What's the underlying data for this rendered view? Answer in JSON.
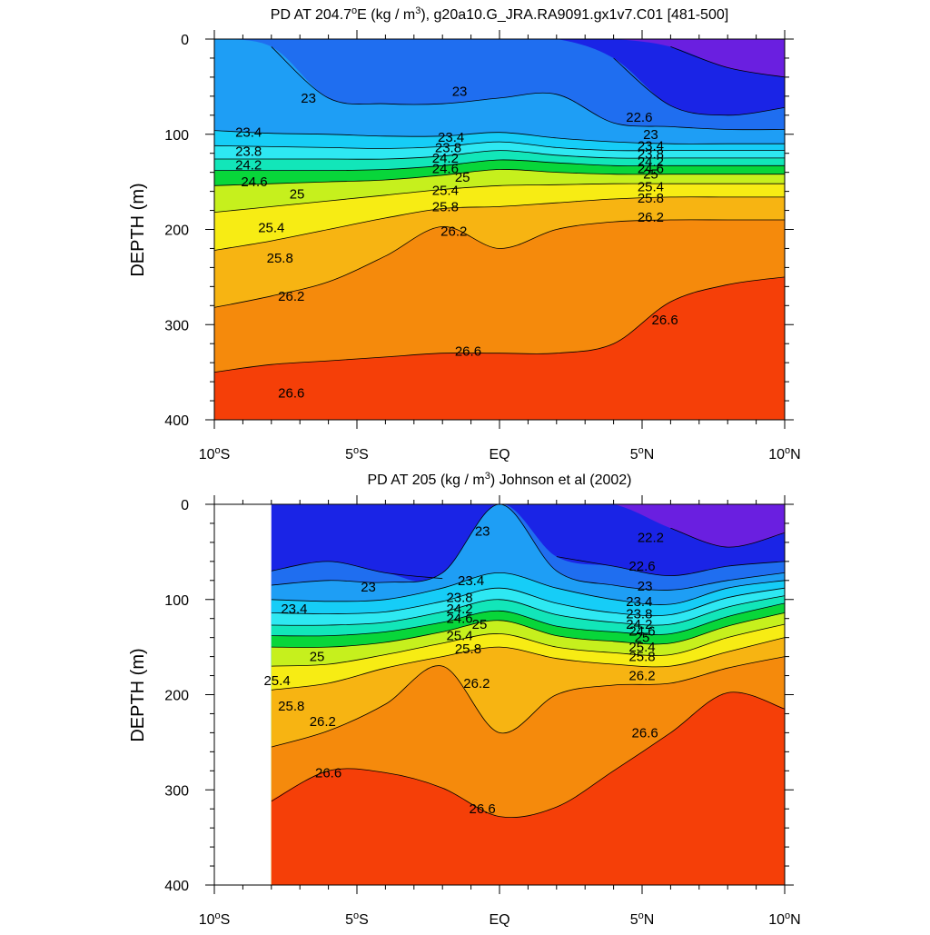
{
  "chart_data": [
    {
      "type": "contour",
      "title_main": "PD AT 204.7",
      "title_deg": "o",
      "title_rest": "E (kg / m",
      "title_sup": "3",
      "title_tail": "), g20a10.G_JRA.RA9091.gx1v7.C01 [481-500]",
      "ylabel": "DEPTH (m)",
      "xlim": [
        -10,
        10
      ],
      "ylim": [
        0,
        400
      ],
      "y_reversed": true,
      "x_ticks": [
        {
          "v": -10,
          "num": "10",
          "deg": "o",
          "hem": "S"
        },
        {
          "v": -5,
          "num": "5",
          "deg": "o",
          "hem": "S"
        },
        {
          "v": 0,
          "num": "EQ",
          "deg": "",
          "hem": ""
        },
        {
          "v": 5,
          "num": "5",
          "deg": "o",
          "hem": "N"
        },
        {
          "v": 10,
          "num": "10",
          "deg": "o",
          "hem": "N"
        }
      ],
      "y_ticks": [
        "0",
        "100",
        "200",
        "300",
        "400"
      ],
      "data_xrange": [
        -10,
        10
      ],
      "x": [
        -10,
        -8,
        -6,
        -4,
        -2,
        0,
        2,
        4,
        6,
        8,
        10
      ],
      "levels": [
        22.2,
        22.6,
        23,
        23.4,
        23.8,
        24.2,
        24.6,
        25,
        25.4,
        25.8,
        26.2,
        26.6
      ],
      "isolines": [
        {
          "v": 22.2,
          "d": [
            null,
            null,
            null,
            null,
            null,
            null,
            null,
            null,
            8,
            30,
            40
          ]
        },
        {
          "v": 22.6,
          "d": [
            null,
            null,
            null,
            null,
            null,
            null,
            null,
            20,
            70,
            80,
            72
          ]
        },
        {
          "v": 23,
          "d": [
            null,
            8,
            62,
            68,
            68,
            62,
            58,
            88,
            92,
            95,
            95
          ]
        },
        {
          "v": 23.4,
          "d": [
            96,
            99,
            100,
            102,
            102,
            98,
            104,
            108,
            110,
            110,
            110
          ]
        },
        {
          "v": 23.8,
          "d": [
            112,
            113,
            114,
            115,
            113,
            108,
            114,
            117,
            117,
            117,
            117
          ]
        },
        {
          "v": 24.2,
          "d": [
            126,
            126,
            126,
            126,
            123,
            117,
            122,
            125,
            125,
            125,
            125
          ]
        },
        {
          "v": 24.6,
          "d": [
            138,
            138,
            138,
            137,
            133,
            127,
            130,
            133,
            133,
            133,
            133
          ]
        },
        {
          "v": 25,
          "d": [
            154,
            152,
            150,
            148,
            143,
            137,
            140,
            142,
            142,
            142,
            142
          ]
        },
        {
          "v": 25.4,
          "d": [
            182,
            176,
            170,
            164,
            158,
            154,
            153,
            152,
            152,
            152,
            152
          ]
        },
        {
          "v": 25.8,
          "d": [
            222,
            212,
            200,
            188,
            178,
            176,
            172,
            168,
            166,
            166,
            166
          ]
        },
        {
          "v": 26.2,
          "d": [
            282,
            270,
            255,
            228,
            197,
            220,
            200,
            192,
            190,
            190,
            190
          ]
        },
        {
          "v": 26.6,
          "d": [
            350,
            342,
            338,
            334,
            330,
            330,
            330,
            320,
            276,
            258,
            250
          ]
        }
      ],
      "labels": [
        {
          "x": -6.7,
          "y": 62,
          "t": "23"
        },
        {
          "x": -1.4,
          "y": 55,
          "t": "23"
        },
        {
          "x": 4.9,
          "y": 82,
          "t": "22.6"
        },
        {
          "x": -8.8,
          "y": 98,
          "t": "23.4"
        },
        {
          "x": -8.8,
          "y": 118,
          "t": "23.8"
        },
        {
          "x": -8.8,
          "y": 132,
          "t": "24.2"
        },
        {
          "x": -8.6,
          "y": 150,
          "t": "24.6"
        },
        {
          "x": -7.1,
          "y": 163,
          "t": "25"
        },
        {
          "x": -8.0,
          "y": 198,
          "t": "25.4"
        },
        {
          "x": -7.7,
          "y": 230,
          "t": "25.8"
        },
        {
          "x": -7.3,
          "y": 270,
          "t": "26.2"
        },
        {
          "x": -1.7,
          "y": 103,
          "t": "23.4"
        },
        {
          "x": -1.8,
          "y": 114,
          "t": "23.8"
        },
        {
          "x": -1.9,
          "y": 125,
          "t": "24.2"
        },
        {
          "x": -1.9,
          "y": 136,
          "t": "24.6"
        },
        {
          "x": -1.3,
          "y": 145,
          "t": "25"
        },
        {
          "x": -1.9,
          "y": 159,
          "t": "25.4"
        },
        {
          "x": -1.9,
          "y": 176,
          "t": "25.8"
        },
        {
          "x": -1.6,
          "y": 202,
          "t": "26.2"
        },
        {
          "x": 5.3,
          "y": 100,
          "t": "23"
        },
        {
          "x": 5.3,
          "y": 112,
          "t": "23.4"
        },
        {
          "x": 5.3,
          "y": 121,
          "t": "23.8"
        },
        {
          "x": 5.3,
          "y": 129,
          "t": "24.2"
        },
        {
          "x": 5.3,
          "y": 136,
          "t": "24.6"
        },
        {
          "x": 5.3,
          "y": 142,
          "t": "25"
        },
        {
          "x": 5.3,
          "y": 155,
          "t": "25.4"
        },
        {
          "x": 5.3,
          "y": 167,
          "t": "25.8"
        },
        {
          "x": 5.3,
          "y": 187,
          "t": "26.2"
        },
        {
          "x": 5.8,
          "y": 295,
          "t": "26.6"
        },
        {
          "x": -1.1,
          "y": 328,
          "t": "26.6"
        },
        {
          "x": -7.3,
          "y": 372,
          "t": "26.6"
        }
      ]
    },
    {
      "type": "contour",
      "title_main": "PD AT 205",
      "title_deg": "",
      "title_rest": " (kg / m",
      "title_sup": "3",
      "title_tail": ") Johnson et al (2002)",
      "ylabel": "DEPTH (m)",
      "xlim": [
        -10,
        10
      ],
      "ylim": [
        0,
        400
      ],
      "y_reversed": true,
      "x_ticks": [
        {
          "v": -10,
          "num": "10",
          "deg": "o",
          "hem": "S"
        },
        {
          "v": -5,
          "num": "5",
          "deg": "o",
          "hem": "S"
        },
        {
          "v": 0,
          "num": "EQ",
          "deg": "",
          "hem": ""
        },
        {
          "v": 5,
          "num": "5",
          "deg": "o",
          "hem": "N"
        },
        {
          "v": 10,
          "num": "10",
          "deg": "o",
          "hem": "N"
        }
      ],
      "y_ticks": [
        "0",
        "100",
        "200",
        "300",
        "400"
      ],
      "data_xrange": [
        -8,
        10
      ],
      "x": [
        -8,
        -6,
        -4,
        -2,
        0,
        2,
        4,
        6,
        8,
        10
      ],
      "levels": [
        22.2,
        22.6,
        23,
        23.4,
        23.8,
        24.2,
        24.6,
        25,
        25.4,
        25.8,
        26.2,
        26.6
      ],
      "isolines": [
        {
          "v": 22.2,
          "d": [
            null,
            null,
            null,
            null,
            null,
            null,
            null,
            25,
            45,
            30
          ]
        },
        {
          "v": 22.6,
          "d": [
            70,
            60,
            72,
            78,
            null,
            55,
            65,
            75,
            65,
            60
          ]
        },
        {
          "v": 23,
          "d": [
            85,
            80,
            82,
            72,
            0,
            70,
            85,
            90,
            80,
            72
          ]
        },
        {
          "v": 23.4,
          "d": [
            100,
            102,
            100,
            88,
            72,
            88,
            100,
            105,
            88,
            80
          ]
        },
        {
          "v": 23.8,
          "d": [
            114,
            115,
            113,
            102,
            88,
            104,
            114,
            116,
            98,
            88
          ]
        },
        {
          "v": 24.2,
          "d": [
            127,
            127,
            124,
            113,
            100,
            116,
            124,
            126,
            108,
            96
          ]
        },
        {
          "v": 24.6,
          "d": [
            138,
            138,
            134,
            124,
            112,
            128,
            134,
            136,
            118,
            104
          ]
        },
        {
          "v": 25,
          "d": [
            150,
            150,
            145,
            134,
            122,
            138,
            144,
            146,
            128,
            114
          ]
        },
        {
          "v": 25.4,
          "d": [
            170,
            168,
            158,
            146,
            136,
            150,
            156,
            158,
            140,
            126
          ]
        },
        {
          "v": 25.8,
          "d": [
            195,
            188,
            172,
            160,
            150,
            162,
            168,
            170,
            155,
            140
          ]
        },
        {
          "v": 26.2,
          "d": [
            255,
            238,
            210,
            170,
            240,
            200,
            190,
            188,
            172,
            160
          ]
        },
        {
          "v": 26.6,
          "d": [
            312,
            280,
            282,
            298,
            328,
            318,
            280,
            240,
            198,
            215
          ]
        }
      ],
      "labels": [
        {
          "x": -4.6,
          "y": 87,
          "t": "23"
        },
        {
          "x": -7.2,
          "y": 110,
          "t": "23.4"
        },
        {
          "x": -0.6,
          "y": 28,
          "t": "23"
        },
        {
          "x": 5.3,
          "y": 35,
          "t": "22.2"
        },
        {
          "x": 5.0,
          "y": 65,
          "t": "22.6"
        },
        {
          "x": 5.1,
          "y": 86,
          "t": "23"
        },
        {
          "x": -1.0,
          "y": 80,
          "t": "23.4"
        },
        {
          "x": -1.4,
          "y": 98,
          "t": "23.8"
        },
        {
          "x": -1.4,
          "y": 110,
          "t": "24.2"
        },
        {
          "x": -1.4,
          "y": 120,
          "t": "24.6"
        },
        {
          "x": -0.7,
          "y": 126,
          "t": "25"
        },
        {
          "x": -1.4,
          "y": 138,
          "t": "25.4"
        },
        {
          "x": -1.1,
          "y": 152,
          "t": "25.8"
        },
        {
          "x": -0.8,
          "y": 188,
          "t": "26.2"
        },
        {
          "x": 4.9,
          "y": 102,
          "t": "23.4"
        },
        {
          "x": 4.9,
          "y": 115,
          "t": "23.8"
        },
        {
          "x": 4.9,
          "y": 126,
          "t": "24.2"
        },
        {
          "x": 5.0,
          "y": 133,
          "t": "24.6"
        },
        {
          "x": 5.0,
          "y": 140,
          "t": "25"
        },
        {
          "x": 5.0,
          "y": 150,
          "t": "25.4"
        },
        {
          "x": 5.0,
          "y": 160,
          "t": "25.8"
        },
        {
          "x": 5.0,
          "y": 180,
          "t": "26.2"
        },
        {
          "x": 5.1,
          "y": 240,
          "t": "26.6"
        },
        {
          "x": -6.4,
          "y": 160,
          "t": "25"
        },
        {
          "x": -7.8,
          "y": 185,
          "t": "25.4"
        },
        {
          "x": -7.3,
          "y": 212,
          "t": "25.8"
        },
        {
          "x": -6.2,
          "y": 228,
          "t": "26.2"
        },
        {
          "x": -6.0,
          "y": 282,
          "t": "26.6"
        },
        {
          "x": -0.6,
          "y": 320,
          "t": "26.6"
        }
      ]
    }
  ]
}
